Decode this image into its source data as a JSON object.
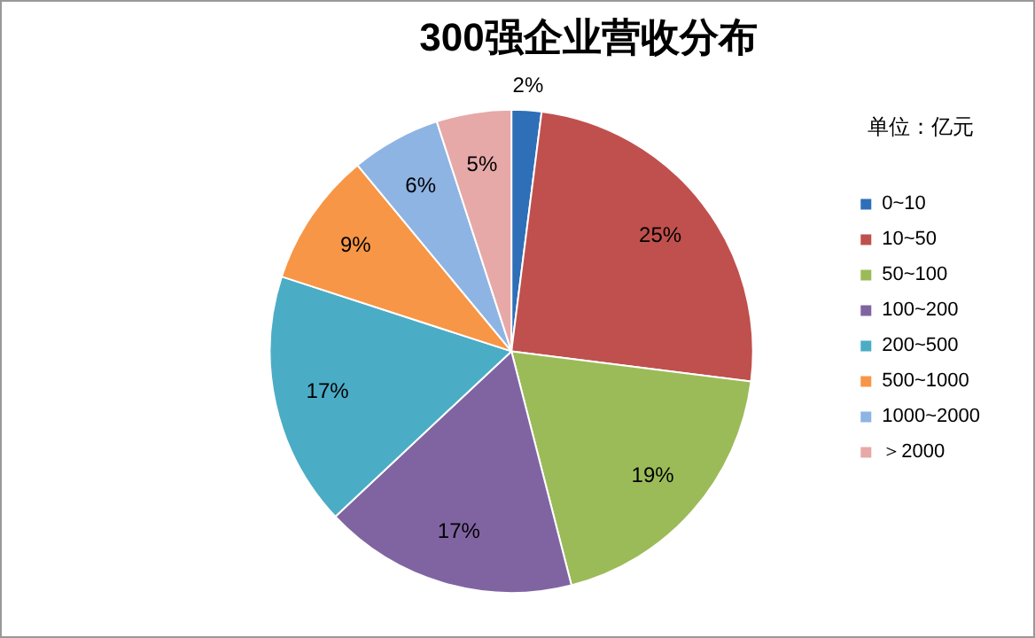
{
  "chart_data": {
    "type": "pie",
    "title": "300强企业营收分布",
    "legend_title": "单位：亿元",
    "legend": "right",
    "categories": [
      "0~10",
      "10~50",
      "50~100",
      "100~200",
      "200~500",
      "500~1000",
      "1000~2000",
      "＞2000"
    ],
    "values": [
      2,
      25,
      19,
      17,
      17,
      9,
      6,
      5
    ],
    "value_labels": [
      "2%",
      "25%",
      "19%",
      "17%",
      "17%",
      "9%",
      "6%",
      "5%"
    ],
    "colors": [
      "#2e6fb8",
      "#c0504d",
      "#9bbb59",
      "#8064a2",
      "#4bacc6",
      "#f79646",
      "#8eb4e3",
      "#e6a9a8"
    ]
  }
}
